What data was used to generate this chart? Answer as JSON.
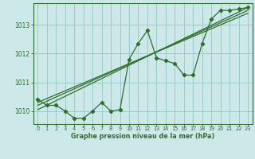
{
  "title": "Graphe pression niveau de la mer (hPa)",
  "bg_color": "#cce8e8",
  "grid_color": "#99cccc",
  "line_color": "#2d6e2d",
  "xlim": [
    -0.5,
    23.5
  ],
  "ylim": [
    1009.55,
    1013.75
  ],
  "xticks": [
    0,
    1,
    2,
    3,
    4,
    5,
    6,
    7,
    8,
    9,
    10,
    11,
    12,
    13,
    14,
    15,
    16,
    17,
    18,
    19,
    20,
    21,
    22,
    23
  ],
  "yticks": [
    1010,
    1011,
    1012,
    1013
  ],
  "hours": [
    0,
    1,
    2,
    3,
    4,
    5,
    6,
    7,
    8,
    9,
    10,
    11,
    12,
    13,
    14,
    15,
    16,
    17,
    18,
    19,
    20,
    21,
    22,
    23
  ],
  "pressure": [
    1010.4,
    1010.2,
    1010.2,
    1010.0,
    1009.75,
    1009.75,
    1010.0,
    1010.3,
    1010.0,
    1010.05,
    1011.8,
    1012.35,
    1012.8,
    1011.85,
    1011.75,
    1011.65,
    1011.25,
    1011.25,
    1012.35,
    1013.2,
    1013.5,
    1013.5,
    1013.55,
    1013.6
  ],
  "trend1_x": [
    0,
    23
  ],
  "trend1_y": [
    1010.05,
    1013.6
  ],
  "trend2_x": [
    0,
    23
  ],
  "trend2_y": [
    1010.2,
    1013.5
  ],
  "trend3_x": [
    0,
    23
  ],
  "trend3_y": [
    1010.3,
    1013.4
  ]
}
